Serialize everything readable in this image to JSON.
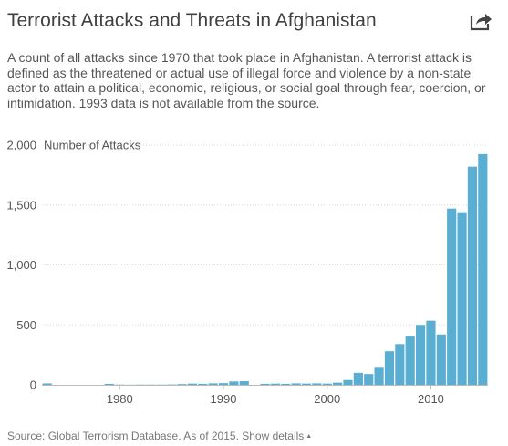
{
  "header": {
    "title": "Terrorist Attacks and Threats in Afghanistan",
    "subtitle": "A count of all attacks since 1970 that took place in Afghanistan. A terrorist attack is defined as the threatened or actual use of illegal force and violence by a non-state actor to attain a political, economic, religious, or social goal through fear, coercion, or intimidation. 1993 data is not available from the source.",
    "share_icon": "share-arrow-icon"
  },
  "footer": {
    "source": "Source: Global Terrorism Database. As of 2015. ",
    "details_label": "Show details",
    "caret": "▲"
  },
  "chart_data": {
    "type": "bar",
    "title": "",
    "xlabel": "",
    "ylabel": "Number of Attacks",
    "ylim": [
      0,
      2000
    ],
    "xlim": [
      1972.5,
      2015.5
    ],
    "yticks": [
      0,
      500,
      1000,
      1500,
      2000
    ],
    "yticks_labels": [
      "0",
      "500",
      "1,000",
      "1,500",
      "2,000"
    ],
    "xticks": [
      1980,
      1990,
      2000,
      2010
    ],
    "grid": true,
    "bar_color": "#5aaed1",
    "x": [
      1973,
      1974,
      1975,
      1976,
      1977,
      1978,
      1979,
      1980,
      1981,
      1982,
      1983,
      1984,
      1985,
      1986,
      1987,
      1988,
      1989,
      1990,
      1991,
      1992,
      1994,
      1995,
      1996,
      1997,
      1998,
      1999,
      2000,
      2001,
      2002,
      2003,
      2004,
      2005,
      2006,
      2007,
      2008,
      2009,
      2010,
      2011,
      2012,
      2013,
      2014,
      2015
    ],
    "values": [
      12,
      0,
      0,
      0,
      0,
      0,
      8,
      2,
      1,
      2,
      2,
      2,
      3,
      6,
      10,
      8,
      12,
      14,
      28,
      30,
      8,
      10,
      8,
      12,
      10,
      12,
      10,
      18,
      40,
      100,
      90,
      150,
      280,
      340,
      410,
      500,
      535,
      420,
      1470,
      1440,
      1820,
      1925
    ]
  }
}
